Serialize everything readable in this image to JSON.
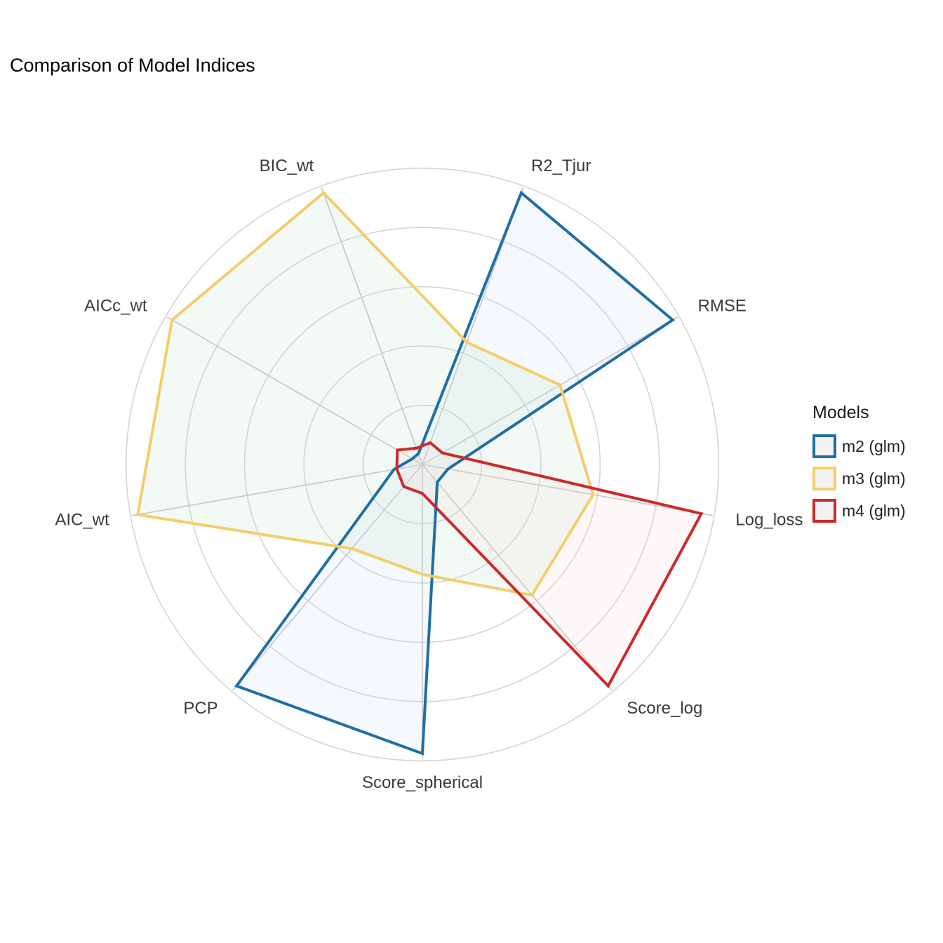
{
  "title": "Comparison of Model Indices",
  "chart_data": {
    "type": "radar",
    "axes": [
      "R2_Tjur",
      "RMSE",
      "Log_loss",
      "Score_log",
      "Score_spherical",
      "PCP",
      "AIC_wt",
      "AICc_wt",
      "BIC_wt"
    ],
    "rlim": [
      0,
      1
    ],
    "grid": true,
    "legend_position": "right",
    "legend_title": "Models",
    "series": [
      {
        "name": "m2 (glm)",
        "color": "#1f6ea4",
        "fill": "#c6d9f0",
        "values": [
          1.0,
          1.0,
          0.09,
          0.08,
          1.0,
          1.0,
          0.1,
          0.04,
          0.04
        ]
      },
      {
        "name": "m3 (glm)",
        "color": "#f4cd6a",
        "fill": "#bfe6cf",
        "values": [
          0.45,
          0.55,
          0.6,
          0.59,
          0.38,
          0.38,
          1.0,
          1.0,
          1.0
        ]
      },
      {
        "name": "m4 (glm)",
        "color": "#cc2a2a",
        "fill": "#f2d2d2",
        "values": [
          0.08,
          0.08,
          0.98,
          1.0,
          0.1,
          0.1,
          0.09,
          0.1,
          0.06
        ]
      }
    ]
  }
}
